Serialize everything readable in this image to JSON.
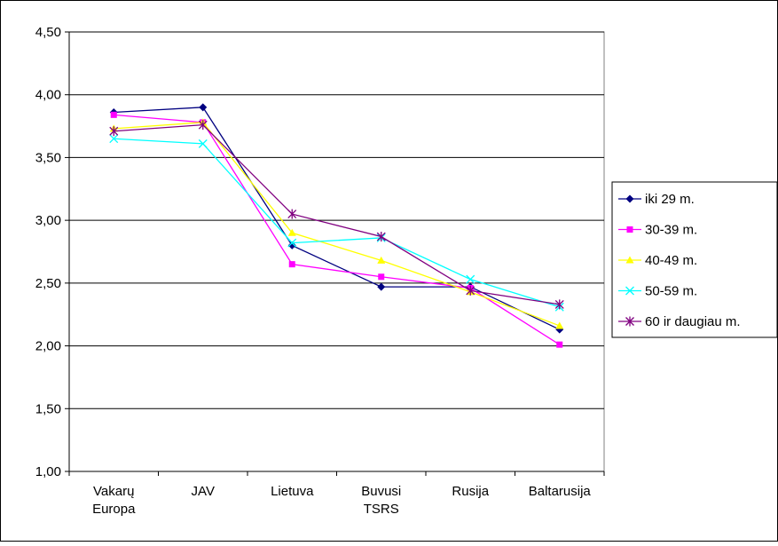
{
  "chart_data": {
    "type": "line",
    "categories": [
      [
        "Vakarų",
        "Europa"
      ],
      [
        "JAV"
      ],
      [
        "Lietuva"
      ],
      [
        "Buvusi",
        "TSRS"
      ],
      [
        "Rusija"
      ],
      [
        "Baltarusija"
      ]
    ],
    "ylim": [
      1.0,
      4.5
    ],
    "yticks": [
      "1,00",
      "1,50",
      "2,00",
      "2,50",
      "3,00",
      "3,50",
      "4,00",
      "4,50"
    ],
    "ytick_values": [
      1.0,
      1.5,
      2.0,
      2.5,
      3.0,
      3.5,
      4.0,
      4.5
    ],
    "grid": true,
    "legend_position": "right",
    "series": [
      {
        "name": "iki 29 m.",
        "color": "#000080",
        "marker": "diamond",
        "values": [
          3.86,
          3.9,
          2.8,
          2.47,
          2.47,
          2.13
        ]
      },
      {
        "name": "30-39 m.",
        "color": "#ff00ff",
        "marker": "square",
        "values": [
          3.84,
          3.78,
          2.65,
          2.55,
          2.46,
          2.01
        ]
      },
      {
        "name": "40-49 m.",
        "color": "#ffff00",
        "marker": "triangle",
        "values": [
          3.73,
          3.78,
          2.9,
          2.68,
          2.43,
          2.16
        ]
      },
      {
        "name": "50-59 m.",
        "color": "#00ffff",
        "marker": "x",
        "values": [
          3.65,
          3.61,
          2.82,
          2.86,
          2.53,
          2.31
        ]
      },
      {
        "name": "60 ir daugiau m.",
        "color": "#800080",
        "marker": "star",
        "values": [
          3.71,
          3.76,
          3.05,
          2.87,
          2.44,
          2.33
        ]
      }
    ]
  }
}
